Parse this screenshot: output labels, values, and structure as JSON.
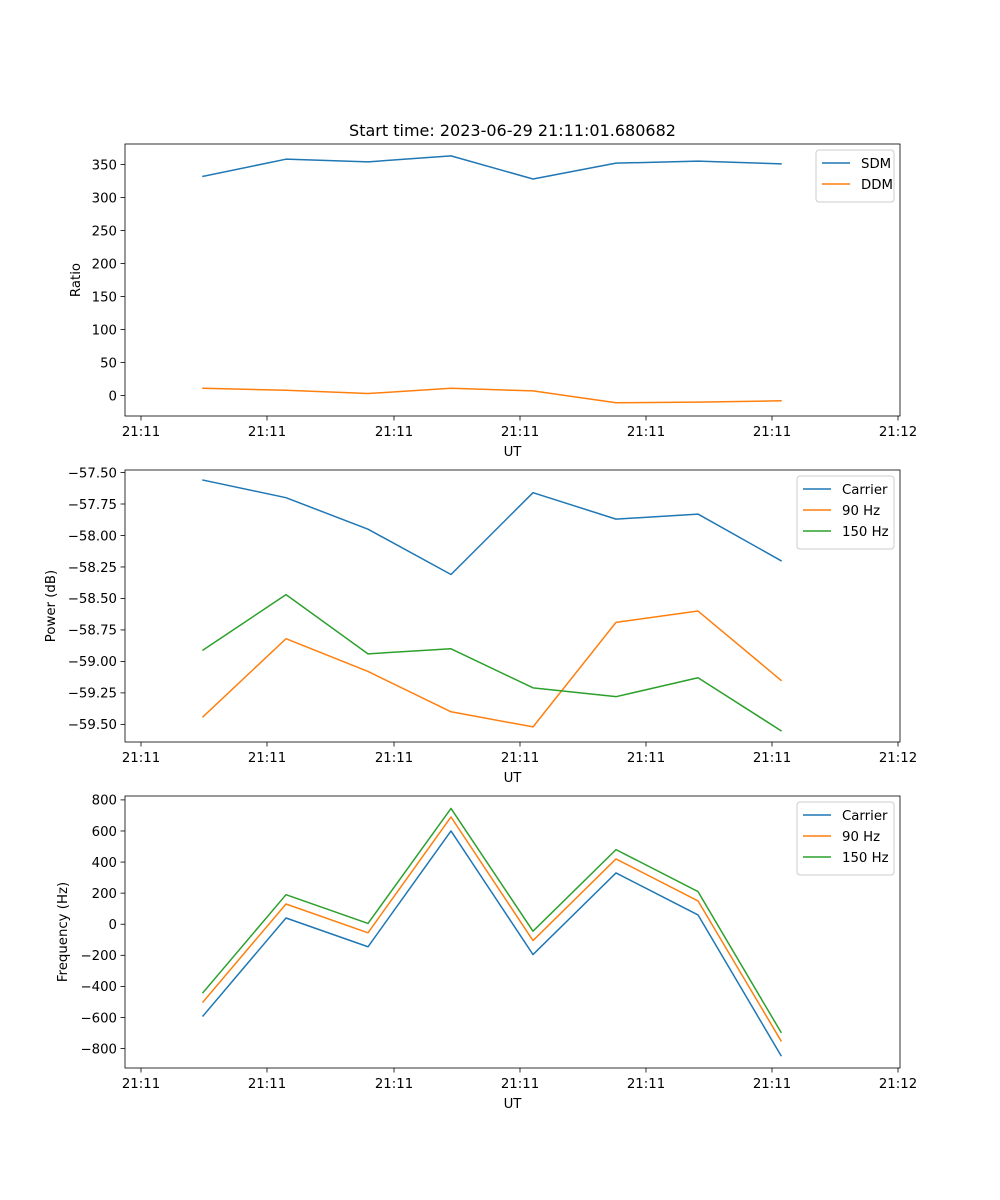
{
  "figure_title": "Start time: 2023-06-29 21:11:01.680682",
  "colors": {
    "blue": "#1f77b4",
    "orange": "#ff7f0e",
    "green": "#2ca02c"
  },
  "chart_data": [
    {
      "type": "line",
      "xlabel": "UT",
      "ylabel": "Ratio",
      "x_tick_labels": [
        "21:11",
        "21:11",
        "21:11",
        "21:11",
        "21:11",
        "21:11",
        "21:12"
      ],
      "y_ticks": [
        0,
        50,
        100,
        150,
        200,
        250,
        300,
        350
      ],
      "y_tick_labels": [
        "0",
        "50",
        "100",
        "150",
        "200",
        "250",
        "300",
        "350"
      ],
      "ylim": [
        -31,
        381
      ],
      "legend_position": "upper right",
      "grid": false,
      "series": [
        {
          "name": "SDM",
          "color": "#1f77b4",
          "values": [
            332,
            358,
            354,
            363,
            328,
            352,
            355,
            351
          ]
        },
        {
          "name": "DDM",
          "color": "#ff7f0e",
          "values": [
            11,
            8,
            3,
            11,
            7,
            -11,
            -10,
            -8
          ]
        }
      ]
    },
    {
      "type": "line",
      "xlabel": "UT",
      "ylabel": "Power (dB)",
      "x_tick_labels": [
        "21:11",
        "21:11",
        "21:11",
        "21:11",
        "21:11",
        "21:11",
        "21:12"
      ],
      "y_ticks": [
        -59.5,
        -59.25,
        -59.0,
        -58.75,
        -58.5,
        -58.25,
        -58.0,
        -57.75,
        -57.5
      ],
      "y_tick_labels": [
        "−59.50",
        "−59.25",
        "−59.00",
        "−58.75",
        "−58.50",
        "−58.25",
        "−58.00",
        "−57.75",
        "−57.50"
      ],
      "ylim": [
        -59.64,
        -57.48
      ],
      "legend_position": "upper right",
      "grid": false,
      "series": [
        {
          "name": "Carrier",
          "color": "#1f77b4",
          "values": [
            -57.56,
            -57.7,
            -57.95,
            -58.31,
            -57.66,
            -57.87,
            -57.83,
            -58.2
          ]
        },
        {
          "name": "90 Hz",
          "color": "#ff7f0e",
          "values": [
            -59.44,
            -58.82,
            -59.08,
            -59.4,
            -59.52,
            -58.69,
            -58.6,
            -59.15
          ]
        },
        {
          "name": "150 Hz",
          "color": "#2ca02c",
          "values": [
            -58.91,
            -58.47,
            -58.94,
            -58.9,
            -59.21,
            -59.28,
            -59.13,
            -59.55
          ]
        }
      ]
    },
    {
      "type": "line",
      "xlabel": "UT",
      "ylabel": "Frequency (Hz)",
      "x_tick_labels": [
        "21:11",
        "21:11",
        "21:11",
        "21:11",
        "21:11",
        "21:11",
        "21:12"
      ],
      "y_ticks": [
        -800,
        -600,
        -400,
        -200,
        0,
        200,
        400,
        600,
        800
      ],
      "y_tick_labels": [
        "−800",
        "−600",
        "−400",
        "−200",
        "0",
        "200",
        "400",
        "600",
        "800"
      ],
      "ylim": [
        -925,
        825
      ],
      "legend_position": "upper right",
      "grid": false,
      "series": [
        {
          "name": "Carrier",
          "color": "#1f77b4",
          "values": [
            -590,
            40,
            -145,
            600,
            -195,
            330,
            60,
            -845
          ]
        },
        {
          "name": "90 Hz",
          "color": "#ff7f0e",
          "values": [
            -500,
            130,
            -55,
            690,
            -105,
            420,
            150,
            -750
          ]
        },
        {
          "name": "150 Hz",
          "color": "#2ca02c",
          "values": [
            -440,
            190,
            5,
            745,
            -45,
            480,
            210,
            -695
          ]
        }
      ]
    }
  ]
}
